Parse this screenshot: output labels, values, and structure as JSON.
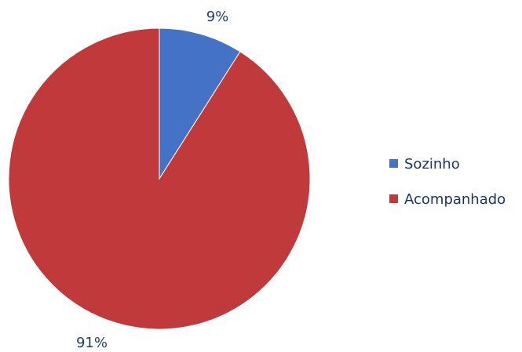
{
  "chart_data": {
    "type": "pie",
    "categories": [
      "Sozinho",
      "Acompanhado"
    ],
    "values": [
      9,
      91
    ],
    "data_labels": [
      "9%",
      "91%"
    ],
    "colors": [
      "#4472c4",
      "#c0393b"
    ],
    "legend_position": "right",
    "start_angle": "12 o'clock, clockwise"
  }
}
